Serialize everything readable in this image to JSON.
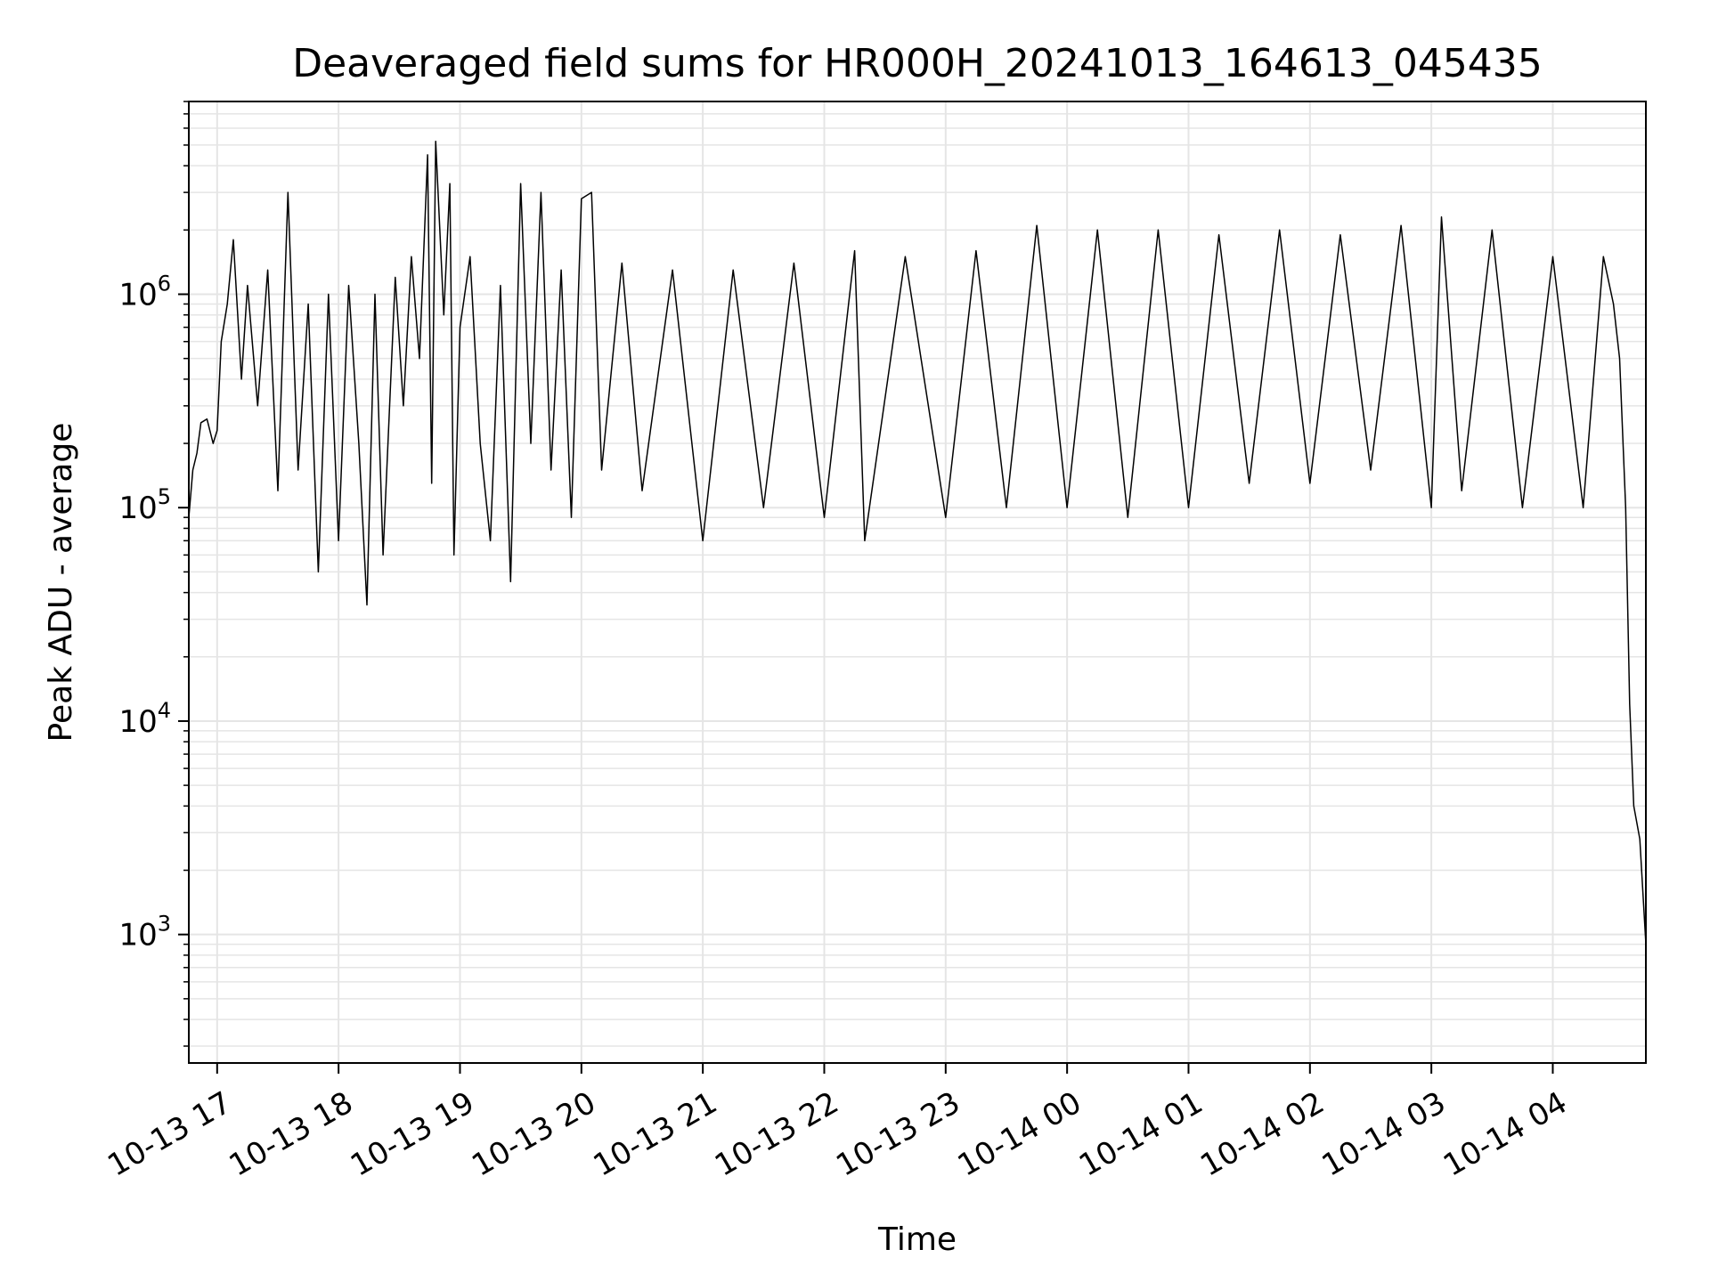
{
  "chart_data": {
    "type": "line",
    "title": "Deaveraged field sums for HR000H_20241013_164613_045435",
    "xlabel": "Time",
    "ylabel": "Peak ADU - average",
    "yscale": "log",
    "ylim": [
      250,
      8000000
    ],
    "xlim": [
      "2024-10-13 16:46",
      "2024-10-14 04:46"
    ],
    "grid": true,
    "grid_minor": true,
    "line_color": "#000000",
    "grid_color": "#e5e5e5",
    "x_ticks": [
      "10-13 17",
      "10-13 18",
      "10-13 19",
      "10-13 20",
      "10-13 21",
      "10-13 22",
      "10-13 23",
      "10-14 00",
      "10-14 01",
      "10-14 02",
      "10-14 03",
      "10-14 04"
    ],
    "y_ticks": [
      {
        "value": 1000,
        "base": "10",
        "exp": "3"
      },
      {
        "value": 10000,
        "base": "10",
        "exp": "4"
      },
      {
        "value": 100000,
        "base": "10",
        "exp": "5"
      },
      {
        "value": 1000000,
        "base": "10",
        "exp": "6"
      }
    ],
    "series": [
      {
        "name": "",
        "points": [
          [
            "2024-10-13 16:46",
            90000
          ],
          [
            "2024-10-13 16:48",
            150000
          ],
          [
            "2024-10-13 16:50",
            180000
          ],
          [
            "2024-10-13 16:52",
            250000
          ],
          [
            "2024-10-13 16:55",
            260000
          ],
          [
            "2024-10-13 16:58",
            200000
          ],
          [
            "2024-10-13 17:00",
            230000
          ],
          [
            "2024-10-13 17:02",
            600000
          ],
          [
            "2024-10-13 17:05",
            900000
          ],
          [
            "2024-10-13 17:08",
            1800000
          ],
          [
            "2024-10-13 17:12",
            400000
          ],
          [
            "2024-10-13 17:15",
            1100000
          ],
          [
            "2024-10-13 17:20",
            300000
          ],
          [
            "2024-10-13 17:25",
            1300000
          ],
          [
            "2024-10-13 17:30",
            120000
          ],
          [
            "2024-10-13 17:35",
            3000000
          ],
          [
            "2024-10-13 17:40",
            150000
          ],
          [
            "2024-10-13 17:45",
            900000
          ],
          [
            "2024-10-13 17:50",
            50000
          ],
          [
            "2024-10-13 17:55",
            1000000
          ],
          [
            "2024-10-13 18:00",
            70000
          ],
          [
            "2024-10-13 18:05",
            1100000
          ],
          [
            "2024-10-13 18:10",
            200000
          ],
          [
            "2024-10-13 18:14",
            35000
          ],
          [
            "2024-10-13 18:18",
            1000000
          ],
          [
            "2024-10-13 18:22",
            60000
          ],
          [
            "2024-10-13 18:28",
            1200000
          ],
          [
            "2024-10-13 18:32",
            300000
          ],
          [
            "2024-10-13 18:36",
            1500000
          ],
          [
            "2024-10-13 18:40",
            500000
          ],
          [
            "2024-10-13 18:44",
            4500000
          ],
          [
            "2024-10-13 18:46",
            130000
          ],
          [
            "2024-10-13 18:48",
            5200000
          ],
          [
            "2024-10-13 18:52",
            800000
          ],
          [
            "2024-10-13 18:55",
            3300000
          ],
          [
            "2024-10-13 18:57",
            60000
          ],
          [
            "2024-10-13 19:00",
            700000
          ],
          [
            "2024-10-13 19:05",
            1500000
          ],
          [
            "2024-10-13 19:10",
            200000
          ],
          [
            "2024-10-13 19:15",
            70000
          ],
          [
            "2024-10-13 19:20",
            1100000
          ],
          [
            "2024-10-13 19:25",
            45000
          ],
          [
            "2024-10-13 19:30",
            3300000
          ],
          [
            "2024-10-13 19:35",
            200000
          ],
          [
            "2024-10-13 19:40",
            3000000
          ],
          [
            "2024-10-13 19:45",
            150000
          ],
          [
            "2024-10-13 19:50",
            1300000
          ],
          [
            "2024-10-13 19:55",
            90000
          ],
          [
            "2024-10-13 20:00",
            2800000
          ],
          [
            "2024-10-13 20:05",
            3000000
          ],
          [
            "2024-10-13 20:10",
            150000
          ],
          [
            "2024-10-13 20:20",
            1400000
          ],
          [
            "2024-10-13 20:30",
            120000
          ],
          [
            "2024-10-13 20:45",
            1300000
          ],
          [
            "2024-10-13 21:00",
            70000
          ],
          [
            "2024-10-13 21:15",
            1300000
          ],
          [
            "2024-10-13 21:30",
            100000
          ],
          [
            "2024-10-13 21:45",
            1400000
          ],
          [
            "2024-10-13 22:00",
            90000
          ],
          [
            "2024-10-13 22:15",
            1600000
          ],
          [
            "2024-10-13 22:20",
            70000
          ],
          [
            "2024-10-13 22:40",
            1500000
          ],
          [
            "2024-10-13 23:00",
            90000
          ],
          [
            "2024-10-13 23:15",
            1600000
          ],
          [
            "2024-10-13 23:30",
            100000
          ],
          [
            "2024-10-13 23:45",
            2100000
          ],
          [
            "2024-10-14 00:00",
            100000
          ],
          [
            "2024-10-14 00:15",
            2000000
          ],
          [
            "2024-10-14 00:30",
            90000
          ],
          [
            "2024-10-14 00:45",
            2000000
          ],
          [
            "2024-10-14 01:00",
            100000
          ],
          [
            "2024-10-14 01:15",
            1900000
          ],
          [
            "2024-10-14 01:30",
            130000
          ],
          [
            "2024-10-14 01:45",
            2000000
          ],
          [
            "2024-10-14 02:00",
            130000
          ],
          [
            "2024-10-14 02:15",
            1900000
          ],
          [
            "2024-10-14 02:30",
            150000
          ],
          [
            "2024-10-14 02:45",
            2100000
          ],
          [
            "2024-10-14 03:00",
            100000
          ],
          [
            "2024-10-14 03:05",
            2300000
          ],
          [
            "2024-10-14 03:15",
            120000
          ],
          [
            "2024-10-14 03:30",
            2000000
          ],
          [
            "2024-10-14 03:45",
            100000
          ],
          [
            "2024-10-14 04:00",
            1500000
          ],
          [
            "2024-10-14 04:15",
            100000
          ],
          [
            "2024-10-14 04:25",
            1500000
          ],
          [
            "2024-10-14 04:30",
            900000
          ],
          [
            "2024-10-14 04:33",
            500000
          ],
          [
            "2024-10-14 04:36",
            100000
          ],
          [
            "2024-10-14 04:38",
            12000
          ],
          [
            "2024-10-14 04:40",
            4000
          ],
          [
            "2024-10-14 04:43",
            2800
          ],
          [
            "2024-10-14 04:46",
            900
          ]
        ]
      }
    ]
  }
}
